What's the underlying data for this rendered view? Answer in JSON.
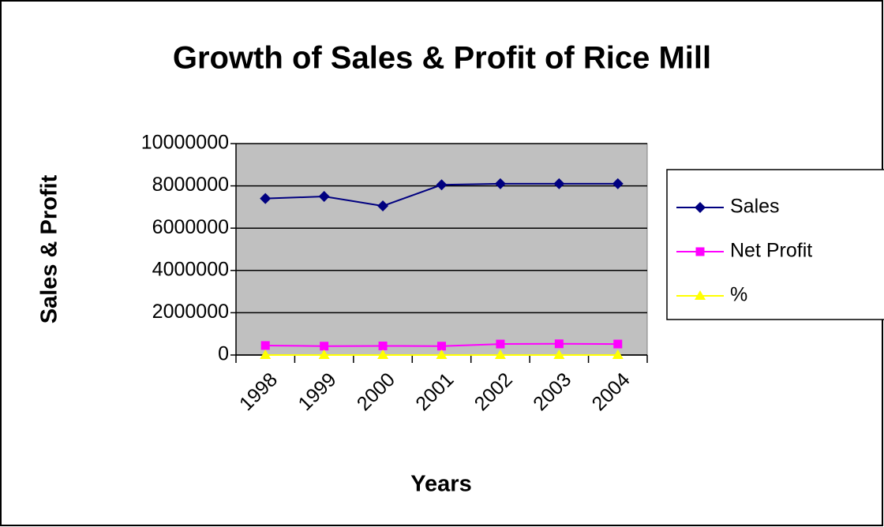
{
  "chart_data": {
    "type": "line",
    "title": "Growth of Sales & Profit of Rice Mill",
    "x_label": "Years",
    "y_label": "Sales & Profit",
    "categories": [
      "1998",
      "1999",
      "2000",
      "2001",
      "2002",
      "2003",
      "2004"
    ],
    "series": [
      {
        "name": "Sales",
        "color": "#000080",
        "marker": "diamond",
        "values": [
          7400000,
          7500000,
          7050000,
          8050000,
          8100000,
          8100000,
          8100000
        ]
      },
      {
        "name": "Net Profit",
        "color": "#ff00ff",
        "marker": "square",
        "values": [
          450000,
          420000,
          430000,
          420000,
          520000,
          530000,
          520000
        ]
      },
      {
        "name": "%",
        "color": "#ffff00",
        "marker": "triangle",
        "values": [
          6,
          6,
          6,
          6,
          6,
          6,
          6
        ]
      }
    ],
    "ylim": [
      0,
      10000000
    ],
    "yticks": [
      0,
      2000000,
      4000000,
      6000000,
      8000000,
      10000000
    ],
    "grid": true,
    "plot_background": "#c0c0c0",
    "legend": "right"
  }
}
